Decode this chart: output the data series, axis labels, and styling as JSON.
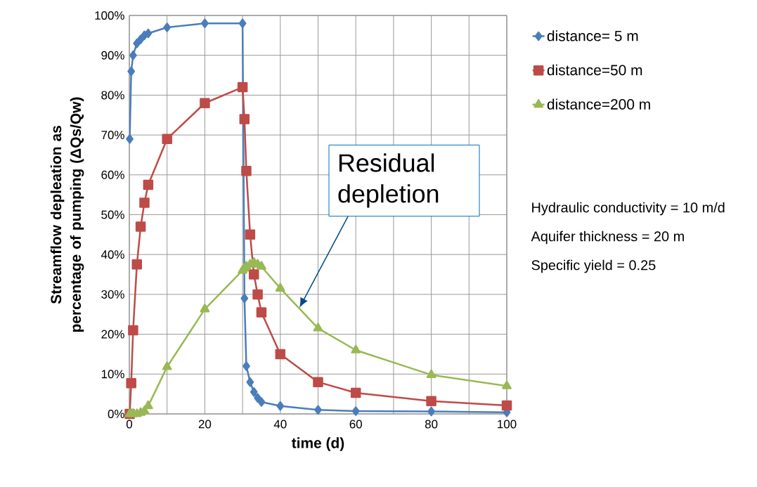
{
  "chart_data": {
    "type": "line",
    "xlabel": "time (d)",
    "ylabel": "Streamflow depleation as percentage of pumping (ΔQs/Qw)",
    "xlim": [
      0,
      100
    ],
    "ylim": [
      0,
      100
    ],
    "xticks": [
      0,
      {
        "value": 10,
        "label": null
      },
      20,
      {
        "value": 30,
        "label": null
      },
      40,
      {
        "value": 50,
        "label": null
      },
      60,
      {
        "value": 70,
        "label": null
      },
      80,
      {
        "value": 90,
        "label": null
      },
      100
    ],
    "yticks": [
      {
        "value": 0,
        "label": "0%"
      },
      {
        "value": 10,
        "label": "10%"
      },
      {
        "value": 20,
        "label": "20%"
      },
      {
        "value": 30,
        "label": "30%"
      },
      {
        "value": 40,
        "label": "40%"
      },
      {
        "value": 50,
        "label": "50%"
      },
      {
        "value": 60,
        "label": "60%"
      },
      {
        "value": 70,
        "label": "70%"
      },
      {
        "value": 80,
        "label": "80%"
      },
      {
        "value": 90,
        "label": "90%"
      },
      {
        "value": 100,
        "label": "100%"
      }
    ],
    "grid": true,
    "legend": "right",
    "line_style": "solid",
    "series": [
      {
        "name": "distance= 5 m",
        "color": "#4a7ebb",
        "marker": "diamond",
        "x": [
          0.1,
          0.5,
          1,
          2,
          3,
          4,
          5,
          10,
          20,
          30,
          30.5,
          31,
          32,
          33,
          34,
          35,
          40,
          50,
          60,
          80,
          100
        ],
        "values": [
          69,
          86,
          90,
          93,
          94,
          95,
          95.5,
          97,
          98,
          98,
          29,
          12,
          8,
          5.5,
          4,
          3,
          2,
          1,
          0.7,
          0.6,
          0.4
        ]
      },
      {
        "name": "distance=50 m",
        "color": "#be4b48",
        "marker": "square",
        "x": [
          0.1,
          0.5,
          1,
          2,
          3,
          4,
          5,
          10,
          20,
          30,
          30.5,
          31,
          32,
          33,
          34,
          35,
          40,
          50,
          60,
          80,
          100
        ],
        "values": [
          0,
          7.7,
          21,
          37.5,
          47,
          53,
          57.5,
          69,
          78,
          82,
          74,
          61,
          45,
          35,
          30,
          25.5,
          15,
          8,
          5.3,
          3.2,
          2.1
        ]
      },
      {
        "name": "distance=200 m",
        "color": "#98b954",
        "marker": "triangle",
        "x": [
          0.1,
          0.5,
          1,
          2,
          3,
          4,
          5,
          10,
          20,
          30,
          30.5,
          31,
          32,
          33,
          34,
          35,
          40,
          50,
          60,
          80,
          100
        ],
        "values": [
          0,
          0,
          0,
          0,
          0.3,
          0.7,
          2,
          11.8,
          26.3,
          36,
          36.5,
          37,
          37.5,
          38,
          37.5,
          37,
          31.5,
          21.5,
          16,
          9.8,
          7
        ]
      }
    ],
    "annotations": [
      "Residual depletion",
      "Hydraulic conductivity = 10 m/d",
      "Aquifer thickness  = 20 m",
      "Specific yield = 0.25"
    ]
  }
}
